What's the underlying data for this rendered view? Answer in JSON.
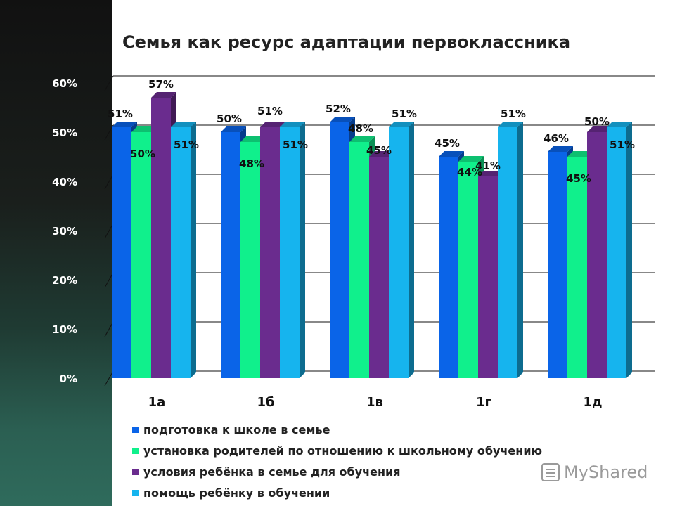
{
  "chart_data": {
    "type": "bar",
    "title": "Семья как ресурс адаптации первоклассника",
    "categories": [
      "1а",
      "1б",
      "1в",
      "1г",
      "1д"
    ],
    "ylim": [
      0,
      60
    ],
    "yticks": [
      "0%",
      "10%",
      "20%",
      "30%",
      "40%",
      "50%",
      "60%"
    ],
    "grid": true,
    "legend_position": "bottom",
    "series": [
      {
        "name": "подготовка к школе в семье",
        "color": "#0a64e8",
        "values": [
          51,
          50,
          52,
          45,
          46
        ],
        "labels": [
          "51%",
          "50%",
          "52%",
          "45%",
          "46%"
        ]
      },
      {
        "name": "установка родителей по отношению к школьному обучению",
        "color": "#10f08c",
        "values": [
          50,
          48,
          48,
          44,
          45
        ],
        "labels": [
          "50%",
          "48%",
          "48%",
          "44%",
          "45%"
        ]
      },
      {
        "name": "условия ребёнка в семье для обучения",
        "color": "#6a2c8e",
        "values": [
          57,
          51,
          45,
          41,
          50
        ],
        "labels": [
          "57%",
          "51%",
          "45%",
          "41%",
          "50%"
        ]
      },
      {
        "name": "помощь ребёнку в обучении",
        "color": "#16b4ee",
        "values": [
          51,
          51,
          51,
          51,
          51
        ],
        "labels": [
          "51%",
          "51%",
          "51%",
          "51%",
          "51%"
        ]
      }
    ]
  },
  "watermark": {
    "text": "MyShared"
  }
}
